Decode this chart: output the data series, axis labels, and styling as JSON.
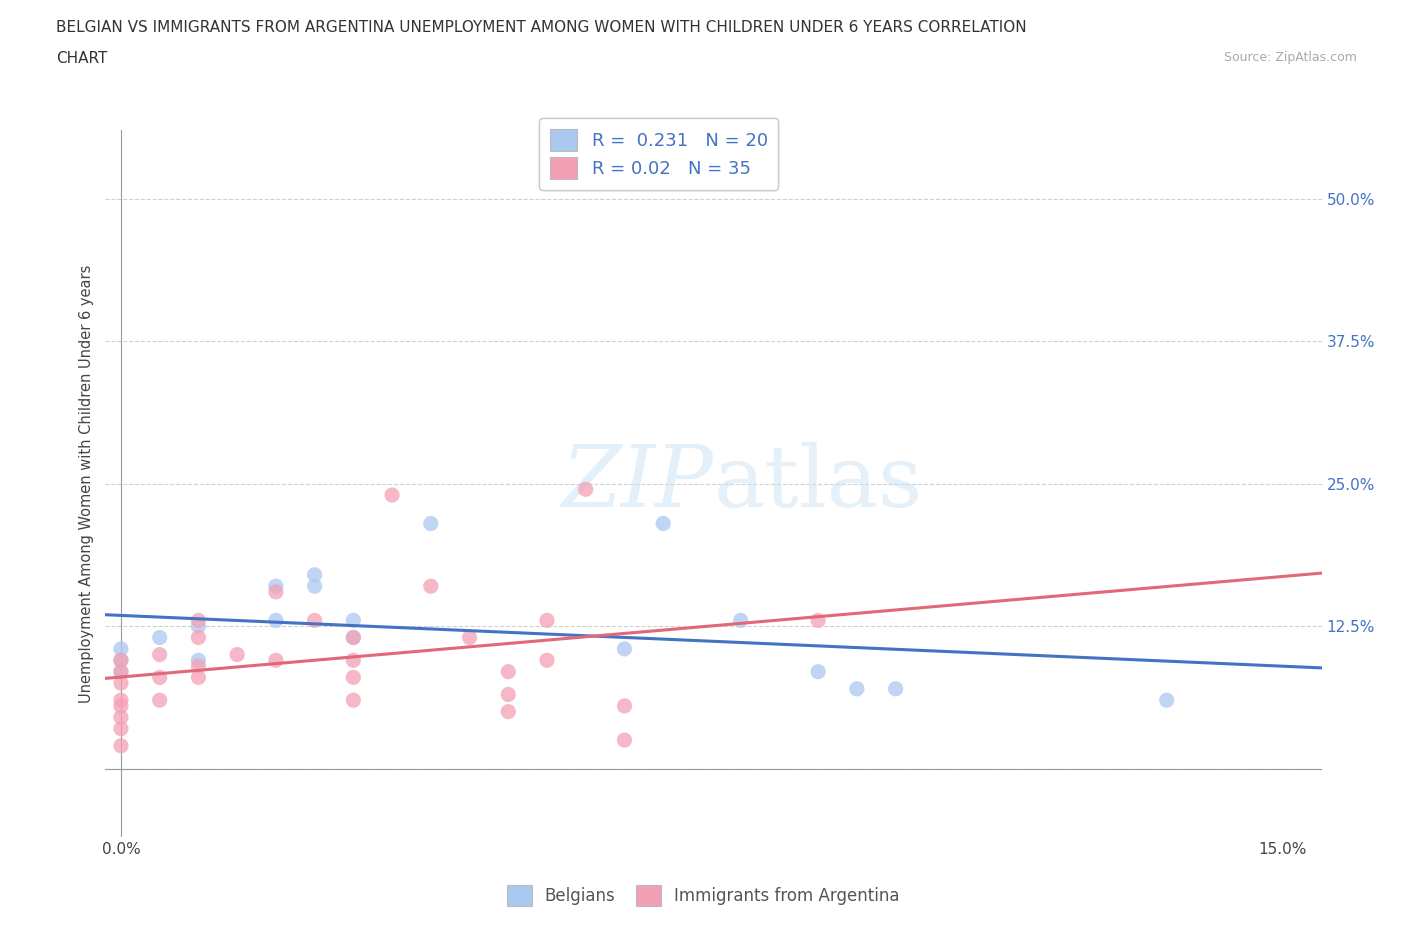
{
  "title_line1": "BELGIAN VS IMMIGRANTS FROM ARGENTINA UNEMPLOYMENT AMONG WOMEN WITH CHILDREN UNDER 6 YEARS CORRELATION",
  "title_line2": "CHART",
  "source_text": "Source: ZipAtlas.com",
  "ylabel": "Unemployment Among Women with Children Under 6 years",
  "xlim": [
    -0.002,
    0.155
  ],
  "ylim": [
    -0.06,
    0.56
  ],
  "ytick_values": [
    0.0,
    0.125,
    0.25,
    0.375,
    0.5
  ],
  "ytick_labels_right": [
    "",
    "12.5%",
    "25.0%",
    "37.5%",
    "50.0%"
  ],
  "xtick_values": [
    0.0,
    0.05,
    0.1,
    0.15
  ],
  "xtick_labels": [
    "0.0%",
    "",
    "",
    "15.0%"
  ],
  "belgian_scatter_color": "#aac8f0",
  "argentina_scatter_color": "#f4a0b4",
  "belgian_line_color": "#4472c4",
  "argentina_line_color": "#e06878",
  "R_belgian": 0.231,
  "N_belgian": 20,
  "R_argentina": 0.02,
  "N_argentina": 35,
  "legend_label_belgian": "Belgians",
  "legend_label_argentina": "Immigrants from Argentina",
  "watermark_zip": "ZIP",
  "watermark_atlas": "atlas",
  "watermark_color_zip": "#cce4f5",
  "watermark_color_atlas": "#c8dff0",
  "belgian_x": [
    0.0,
    0.0,
    0.0,
    0.005,
    0.01,
    0.01,
    0.02,
    0.02,
    0.025,
    0.025,
    0.03,
    0.03,
    0.04,
    0.065,
    0.07,
    0.08,
    0.09,
    0.095,
    0.1,
    0.135
  ],
  "belgian_y": [
    0.085,
    0.095,
    0.105,
    0.115,
    0.095,
    0.125,
    0.16,
    0.13,
    0.16,
    0.17,
    0.115,
    0.13,
    0.215,
    0.105,
    0.215,
    0.13,
    0.085,
    0.07,
    0.07,
    0.06
  ],
  "argentina_x": [
    0.0,
    0.0,
    0.0,
    0.0,
    0.0,
    0.0,
    0.0,
    0.0,
    0.005,
    0.005,
    0.005,
    0.01,
    0.01,
    0.01,
    0.01,
    0.015,
    0.02,
    0.02,
    0.025,
    0.03,
    0.03,
    0.03,
    0.03,
    0.035,
    0.04,
    0.045,
    0.05,
    0.05,
    0.05,
    0.055,
    0.055,
    0.06,
    0.065,
    0.065,
    0.09
  ],
  "argentina_y": [
    0.085,
    0.095,
    0.075,
    0.06,
    0.055,
    0.045,
    0.035,
    0.02,
    0.1,
    0.08,
    0.06,
    0.13,
    0.115,
    0.09,
    0.08,
    0.1,
    0.155,
    0.095,
    0.13,
    0.115,
    0.095,
    0.08,
    0.06,
    0.24,
    0.16,
    0.115,
    0.085,
    0.065,
    0.05,
    0.13,
    0.095,
    0.245,
    0.055,
    0.025,
    0.13
  ],
  "hline_y": 0.0,
  "vline_x": 0.0
}
